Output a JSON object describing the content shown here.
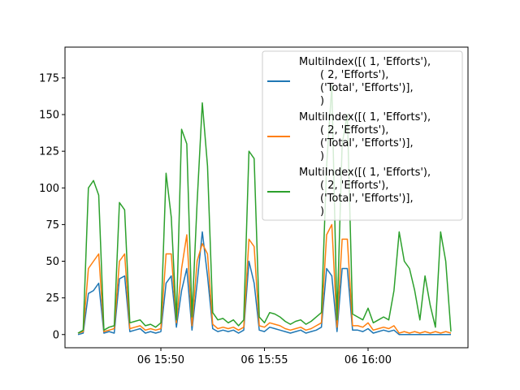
{
  "chart_data": {
    "type": "line",
    "title": "",
    "xlabel": "",
    "ylabel": "",
    "x_range": [
      "15:46:00",
      "16:04:00"
    ],
    "ylim": [
      -9,
      196
    ],
    "grid": false,
    "legend_position": "top-right",
    "x_ticks": [
      {
        "time": "15:50",
        "label": "06 15:50"
      },
      {
        "time": "15:55",
        "label": "06 15:55"
      },
      {
        "time": "16:00",
        "label": "06 16:00"
      }
    ],
    "y_ticks": [
      0,
      25,
      50,
      75,
      100,
      125,
      150,
      175
    ],
    "series": [
      {
        "name": "MultiIndex([(      1, 'Efforts'),\n            (      2, 'Efforts'),\n            ('Total', 'Efforts')],\n           )",
        "legend_lines": [
          "MultiIndex([(      1, 'Efforts'),",
          "(      2, 'Efforts'),",
          "('Total', 'Efforts')],",
          ")"
        ],
        "color": "#1f77b4",
        "x": [
          "15:46:00",
          "15:46:15",
          "15:46:30",
          "15:46:45",
          "15:47:00",
          "15:47:15",
          "15:47:30",
          "15:47:45",
          "15:48:00",
          "15:48:15",
          "15:48:30",
          "15:48:45",
          "15:49:00",
          "15:49:15",
          "15:49:30",
          "15:49:45",
          "15:50:00",
          "15:50:15",
          "15:50:30",
          "15:50:45",
          "15:51:00",
          "15:51:15",
          "15:51:30",
          "15:51:45",
          "15:52:00",
          "15:52:15",
          "15:52:30",
          "15:52:45",
          "15:53:00",
          "15:53:15",
          "15:53:30",
          "15:53:45",
          "15:54:00",
          "15:54:15",
          "15:54:30",
          "15:54:45",
          "15:55:00",
          "15:55:15",
          "15:55:30",
          "15:55:45",
          "15:56:00",
          "15:56:15",
          "15:56:30",
          "15:56:45",
          "15:57:00",
          "15:57:15",
          "15:57:30",
          "15:57:45",
          "15:58:00",
          "15:58:15",
          "15:58:30",
          "15:58:45",
          "15:59:00",
          "15:59:15",
          "15:59:30",
          "15:59:45",
          "16:00:00",
          "16:00:15",
          "16:00:30",
          "16:00:45",
          "16:01:00",
          "16:01:15",
          "16:01:30",
          "16:01:45",
          "16:02:00",
          "16:02:15",
          "16:02:30",
          "16:02:45",
          "16:03:00",
          "16:03:15",
          "16:03:30",
          "16:03:45",
          "16:04:00"
        ],
        "y": [
          0,
          1,
          28,
          30,
          35,
          1,
          2,
          1,
          38,
          40,
          2,
          3,
          4,
          1,
          2,
          1,
          2,
          35,
          40,
          5,
          30,
          45,
          3,
          35,
          70,
          40,
          4,
          2,
          3,
          2,
          3,
          1,
          3,
          50,
          35,
          3,
          2,
          5,
          4,
          3,
          2,
          1,
          2,
          3,
          1,
          2,
          3,
          5,
          45,
          40,
          2,
          45,
          45,
          3,
          3,
          2,
          4,
          1,
          2,
          3,
          2,
          3,
          0,
          0,
          0,
          0,
          0,
          0,
          0,
          0,
          0,
          0,
          0
        ]
      },
      {
        "name": "MultiIndex([(      1, 'Efforts'),\n            (      2, 'Efforts'),\n            ('Total', 'Efforts')],\n           )",
        "legend_lines": [
          "MultiIndex([(      1, 'Efforts'),",
          "(      2, 'Efforts'),",
          "('Total', 'Efforts')],",
          ")"
        ],
        "color": "#ff7f0e",
        "x": [
          "15:46:00",
          "15:46:15",
          "15:46:30",
          "15:46:45",
          "15:47:00",
          "15:47:15",
          "15:47:30",
          "15:47:45",
          "15:48:00",
          "15:48:15",
          "15:48:30",
          "15:48:45",
          "15:49:00",
          "15:49:15",
          "15:49:30",
          "15:49:45",
          "15:50:00",
          "15:50:15",
          "15:50:30",
          "15:50:45",
          "15:51:00",
          "15:51:15",
          "15:51:30",
          "15:51:45",
          "15:52:00",
          "15:52:15",
          "15:52:30",
          "15:52:45",
          "15:53:00",
          "15:53:15",
          "15:53:30",
          "15:53:45",
          "15:54:00",
          "15:54:15",
          "15:54:30",
          "15:54:45",
          "15:55:00",
          "15:55:15",
          "15:55:30",
          "15:55:45",
          "15:56:00",
          "15:56:15",
          "15:56:30",
          "15:56:45",
          "15:57:00",
          "15:57:15",
          "15:57:30",
          "15:57:45",
          "15:58:00",
          "15:58:15",
          "15:58:30",
          "15:58:45",
          "15:59:00",
          "15:59:15",
          "15:59:30",
          "15:59:45",
          "16:00:00",
          "16:00:15",
          "16:00:30",
          "16:00:45",
          "16:01:00",
          "16:01:15",
          "16:01:30",
          "16:01:45",
          "16:02:00",
          "16:02:15",
          "16:02:30",
          "16:02:45",
          "16:03:00",
          "16:03:15",
          "16:03:30",
          "16:03:45",
          "16:04:00"
        ],
        "y": [
          1,
          2,
          45,
          50,
          55,
          2,
          3,
          4,
          50,
          55,
          4,
          5,
          6,
          3,
          4,
          3,
          4,
          55,
          55,
          8,
          45,
          68,
          6,
          50,
          62,
          55,
          7,
          4,
          5,
          4,
          5,
          3,
          5,
          65,
          60,
          6,
          5,
          8,
          7,
          6,
          4,
          3,
          4,
          5,
          3,
          4,
          6,
          8,
          68,
          75,
          5,
          65,
          65,
          6,
          6,
          5,
          8,
          3,
          4,
          5,
          4,
          6,
          1,
          2,
          1,
          2,
          1,
          2,
          1,
          2,
          1,
          2,
          1
        ]
      },
      {
        "name": "MultiIndex([(      1, 'Efforts'),\n            (      2, 'Efforts'),\n            ('Total', 'Efforts')],\n           )",
        "legend_lines": [
          "MultiIndex([(      1, 'Efforts'),",
          "(      2, 'Efforts'),",
          "('Total', 'Efforts')],",
          ")"
        ],
        "color": "#2ca02c",
        "x": [
          "15:46:00",
          "15:46:15",
          "15:46:30",
          "15:46:45",
          "15:47:00",
          "15:47:15",
          "15:47:30",
          "15:47:45",
          "15:48:00",
          "15:48:15",
          "15:48:30",
          "15:48:45",
          "15:49:00",
          "15:49:15",
          "15:49:30",
          "15:49:45",
          "15:50:00",
          "15:50:15",
          "15:50:30",
          "15:50:45",
          "15:51:00",
          "15:51:15",
          "15:51:30",
          "15:51:45",
          "15:52:00",
          "15:52:15",
          "15:52:30",
          "15:52:45",
          "15:53:00",
          "15:53:15",
          "15:53:30",
          "15:53:45",
          "15:54:00",
          "15:54:15",
          "15:54:30",
          "15:54:45",
          "15:55:00",
          "15:55:15",
          "15:55:30",
          "15:55:45",
          "15:56:00",
          "15:56:15",
          "15:56:30",
          "15:56:45",
          "15:57:00",
          "15:57:15",
          "15:57:30",
          "15:57:45",
          "15:58:00",
          "15:58:15",
          "15:58:30",
          "15:58:45",
          "15:59:00",
          "15:59:15",
          "15:59:30",
          "15:59:45",
          "16:00:00",
          "16:00:15",
          "16:00:30",
          "16:00:45",
          "16:01:00",
          "16:01:15",
          "16:01:30",
          "16:01:45",
          "16:02:00",
          "16:02:15",
          "16:02:30",
          "16:02:45",
          "16:03:00",
          "16:03:15",
          "16:03:30",
          "16:03:45",
          "16:04:00"
        ],
        "y": [
          1,
          3,
          100,
          105,
          95,
          3,
          5,
          6,
          90,
          85,
          8,
          9,
          10,
          6,
          7,
          5,
          8,
          110,
          80,
          10,
          140,
          130,
          12,
          90,
          158,
          115,
          15,
          10,
          11,
          8,
          10,
          6,
          10,
          125,
          120,
          12,
          8,
          15,
          14,
          12,
          9,
          7,
          9,
          10,
          7,
          9,
          12,
          15,
          115,
          170,
          10,
          130,
          150,
          14,
          12,
          10,
          18,
          8,
          10,
          12,
          10,
          30,
          70,
          50,
          45,
          30,
          10,
          40,
          20,
          5,
          70,
          50,
          2
        ]
      }
    ]
  }
}
